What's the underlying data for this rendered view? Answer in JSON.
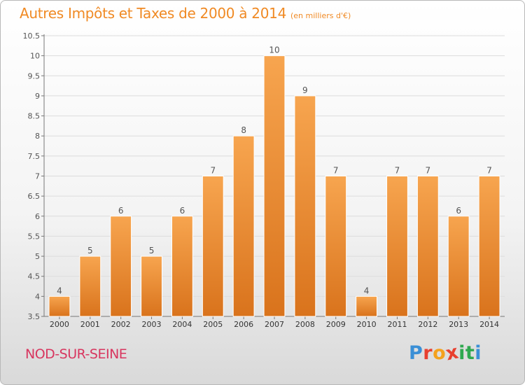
{
  "header": {
    "title": "Autres Impôts et Taxes de 2000 à 2014",
    "subtitle": "(en milliers d'€)"
  },
  "footer": {
    "commune": "NOD-SUR-SEINE",
    "logo_text": [
      "P",
      "r",
      "o",
      "x",
      "i",
      "t",
      "i"
    ]
  },
  "colors": {
    "bar_top": "#f7a54f",
    "bar_bottom": "#d9731c",
    "title": "#f08a24",
    "commune": "#d8365f",
    "grid": "#dcdcdc"
  },
  "chart_data": {
    "type": "bar",
    "title": "Autres Impôts et Taxes de 2000 à 2014",
    "subtitle": "(en milliers d'€)",
    "xlabel": "",
    "ylabel": "",
    "categories": [
      "2000",
      "2001",
      "2002",
      "2003",
      "2004",
      "2005",
      "2006",
      "2007",
      "2008",
      "2009",
      "2010",
      "2011",
      "2012",
      "2013",
      "2014"
    ],
    "values": [
      4,
      5,
      6,
      5,
      6,
      7,
      8,
      10,
      9,
      7,
      4,
      7,
      7,
      6,
      7
    ],
    "data_labels": [
      "4",
      "5",
      "6",
      "5",
      "6",
      "7",
      "8",
      "10",
      "9",
      "7",
      "4",
      "7",
      "7",
      "6",
      "7"
    ],
    "ylim": [
      3.5,
      10.5
    ],
    "yticks": [
      "3.5",
      "4",
      "4.5",
      "5",
      "5.5",
      "6",
      "6.5",
      "7",
      "7.5",
      "8",
      "8.5",
      "9",
      "9.5",
      "10",
      "10.5"
    ],
    "grid": true,
    "legend": "none"
  }
}
